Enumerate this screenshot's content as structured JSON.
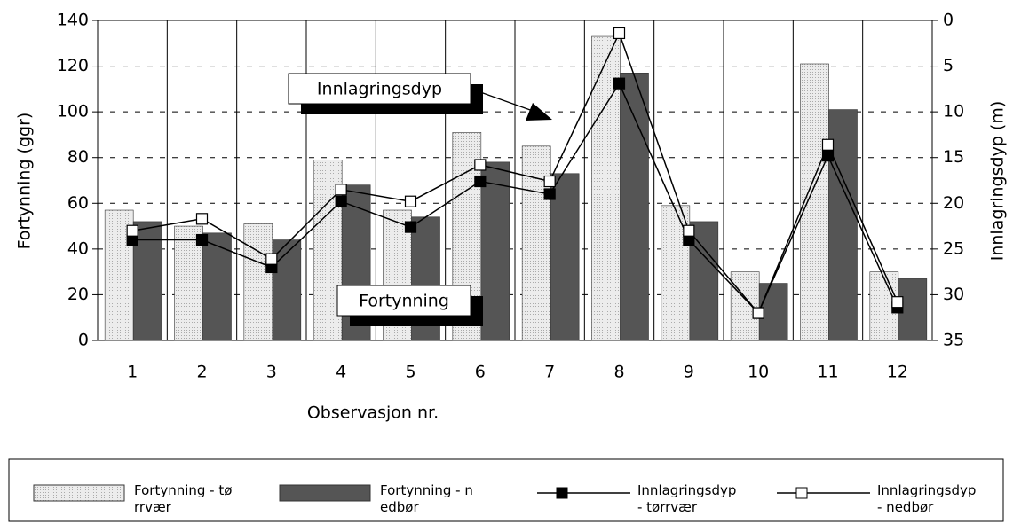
{
  "chart_data": {
    "type": "bar",
    "xlabel": "Observasjon nr.",
    "ylabel": "Fortynning (ggr)",
    "y2label": "Innlagringsdyp (m)",
    "categories": [
      "1",
      "2",
      "3",
      "4",
      "5",
      "6",
      "7",
      "8",
      "9",
      "10",
      "11",
      "12"
    ],
    "series": [
      {
        "name": "Fortynning - tørrvær",
        "type": "bar",
        "color": "#e6e6e6",
        "values": [
          57,
          50,
          51,
          79,
          57,
          91,
          85,
          133,
          59,
          30,
          121,
          30
        ]
      },
      {
        "name": "Fortynning - nedbør",
        "type": "bar",
        "color": "#555555",
        "values": [
          52,
          47,
          44,
          68,
          54,
          78,
          73,
          117,
          52,
          25,
          101,
          27
        ]
      },
      {
        "name": "Innlagringsdyp- tørrvær",
        "type": "line",
        "axis": "y2",
        "color": "#000000",
        "marker_fill": "#000000",
        "values": [
          24,
          24,
          27,
          19.8,
          22.6,
          17.6,
          19,
          6.9,
          24,
          32,
          14.8,
          31.4
        ]
      },
      {
        "name": "Innlagringsdyp - nedbør",
        "type": "line",
        "axis": "y2",
        "color": "#000000",
        "marker_fill": "#ffffff",
        "values": [
          23,
          21.7,
          26.1,
          18.5,
          19.8,
          15.8,
          17.6,
          1.4,
          23,
          32,
          13.6,
          30.8
        ]
      }
    ],
    "ylim": [
      0,
      140
    ],
    "yticks": [
      0,
      20,
      40,
      60,
      80,
      100,
      120,
      140
    ],
    "y2lim": [
      35,
      0
    ],
    "y2ticks": [
      0,
      5,
      10,
      15,
      20,
      25,
      30,
      35
    ],
    "grid": true,
    "annotations": [
      "Innlagringsdyp",
      "Fortynning"
    ],
    "legend": "bottom"
  }
}
